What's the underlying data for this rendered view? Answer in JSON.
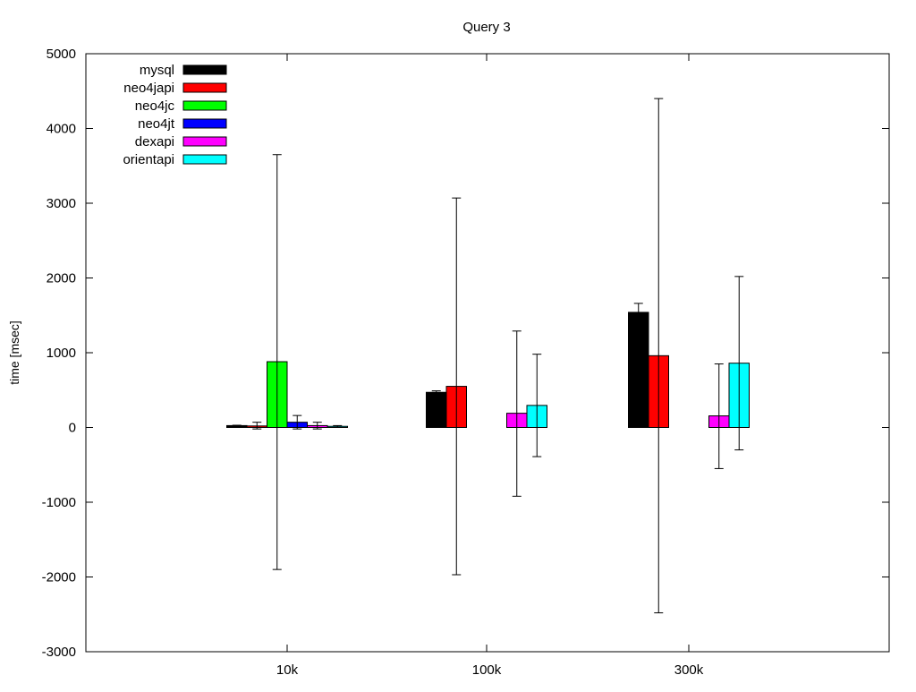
{
  "chart_data": {
    "type": "bar",
    "title": "Query 3",
    "xlabel": "",
    "ylabel": "time [msec]",
    "ylim": [
      -3000,
      5000
    ],
    "yticks": [
      -3000,
      -2000,
      -1000,
      0,
      1000,
      2000,
      3000,
      4000,
      5000
    ],
    "categories": [
      "10k",
      "100k",
      "300k"
    ],
    "legend_position": "top-left",
    "grid": false,
    "error_bars": true,
    "series": [
      {
        "name": "mysql",
        "color": "#000000",
        "values": [
          25,
          470,
          1540
        ],
        "error_low": [
          0,
          0,
          0
        ],
        "error_high": [
          30,
          490,
          1660
        ]
      },
      {
        "name": "neo4japi",
        "color": "#ff0000",
        "values": [
          20,
          550,
          960
        ],
        "error_low": [
          -20,
          -1970,
          -2480
        ],
        "error_high": [
          70,
          3070,
          4400
        ]
      },
      {
        "name": "neo4jc",
        "color": "#00ff00",
        "values": [
          880,
          null,
          null
        ],
        "error_low": [
          -1900,
          null,
          null
        ],
        "error_high": [
          3650,
          null,
          null
        ]
      },
      {
        "name": "neo4jt",
        "color": "#0000ff",
        "values": [
          70,
          null,
          null
        ],
        "error_low": [
          -20,
          null,
          null
        ],
        "error_high": [
          160,
          null,
          null
        ]
      },
      {
        "name": "dexapi",
        "color": "#ff00ff",
        "values": [
          25,
          190,
          155
        ],
        "error_low": [
          -20,
          -920,
          -550
        ],
        "error_high": [
          70,
          1290,
          850
        ]
      },
      {
        "name": "orientapi",
        "color": "#00ffff",
        "values": [
          15,
          295,
          860
        ],
        "error_low": [
          0,
          -390,
          -300
        ],
        "error_high": [
          25,
          980,
          2020
        ]
      }
    ]
  }
}
